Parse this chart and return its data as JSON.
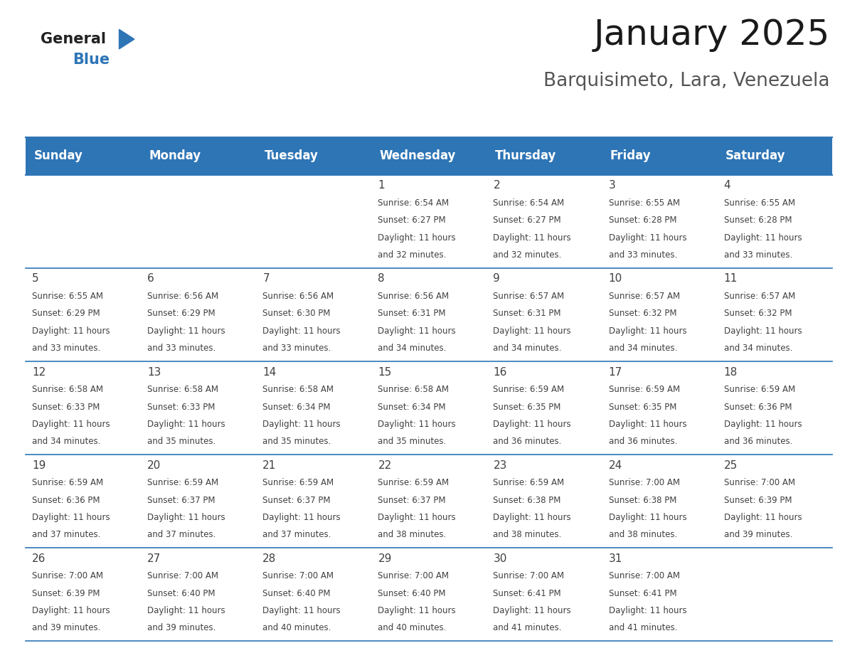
{
  "title": "January 2025",
  "subtitle": "Barquisimeto, Lara, Venezuela",
  "header_bg": "#2E75B6",
  "header_text_color": "#FFFFFF",
  "day_names": [
    "Sunday",
    "Monday",
    "Tuesday",
    "Wednesday",
    "Thursday",
    "Friday",
    "Saturday"
  ],
  "background_color": "#FFFFFF",
  "cell_bg": "#FFFFFF",
  "cell_text_color": "#404040",
  "border_color": "#2E75B6",
  "days": [
    {
      "day": 1,
      "col": 3,
      "row": 0,
      "sunrise": "6:54 AM",
      "sunset": "6:27 PM",
      "daylight_hours": 11,
      "daylight_minutes": 32
    },
    {
      "day": 2,
      "col": 4,
      "row": 0,
      "sunrise": "6:54 AM",
      "sunset": "6:27 PM",
      "daylight_hours": 11,
      "daylight_minutes": 32
    },
    {
      "day": 3,
      "col": 5,
      "row": 0,
      "sunrise": "6:55 AM",
      "sunset": "6:28 PM",
      "daylight_hours": 11,
      "daylight_minutes": 33
    },
    {
      "day": 4,
      "col": 6,
      "row": 0,
      "sunrise": "6:55 AM",
      "sunset": "6:28 PM",
      "daylight_hours": 11,
      "daylight_minutes": 33
    },
    {
      "day": 5,
      "col": 0,
      "row": 1,
      "sunrise": "6:55 AM",
      "sunset": "6:29 PM",
      "daylight_hours": 11,
      "daylight_minutes": 33
    },
    {
      "day": 6,
      "col": 1,
      "row": 1,
      "sunrise": "6:56 AM",
      "sunset": "6:29 PM",
      "daylight_hours": 11,
      "daylight_minutes": 33
    },
    {
      "day": 7,
      "col": 2,
      "row": 1,
      "sunrise": "6:56 AM",
      "sunset": "6:30 PM",
      "daylight_hours": 11,
      "daylight_minutes": 33
    },
    {
      "day": 8,
      "col": 3,
      "row": 1,
      "sunrise": "6:56 AM",
      "sunset": "6:31 PM",
      "daylight_hours": 11,
      "daylight_minutes": 34
    },
    {
      "day": 9,
      "col": 4,
      "row": 1,
      "sunrise": "6:57 AM",
      "sunset": "6:31 PM",
      "daylight_hours": 11,
      "daylight_minutes": 34
    },
    {
      "day": 10,
      "col": 5,
      "row": 1,
      "sunrise": "6:57 AM",
      "sunset": "6:32 PM",
      "daylight_hours": 11,
      "daylight_minutes": 34
    },
    {
      "day": 11,
      "col": 6,
      "row": 1,
      "sunrise": "6:57 AM",
      "sunset": "6:32 PM",
      "daylight_hours": 11,
      "daylight_minutes": 34
    },
    {
      "day": 12,
      "col": 0,
      "row": 2,
      "sunrise": "6:58 AM",
      "sunset": "6:33 PM",
      "daylight_hours": 11,
      "daylight_minutes": 34
    },
    {
      "day": 13,
      "col": 1,
      "row": 2,
      "sunrise": "6:58 AM",
      "sunset": "6:33 PM",
      "daylight_hours": 11,
      "daylight_minutes": 35
    },
    {
      "day": 14,
      "col": 2,
      "row": 2,
      "sunrise": "6:58 AM",
      "sunset": "6:34 PM",
      "daylight_hours": 11,
      "daylight_minutes": 35
    },
    {
      "day": 15,
      "col": 3,
      "row": 2,
      "sunrise": "6:58 AM",
      "sunset": "6:34 PM",
      "daylight_hours": 11,
      "daylight_minutes": 35
    },
    {
      "day": 16,
      "col": 4,
      "row": 2,
      "sunrise": "6:59 AM",
      "sunset": "6:35 PM",
      "daylight_hours": 11,
      "daylight_minutes": 36
    },
    {
      "day": 17,
      "col": 5,
      "row": 2,
      "sunrise": "6:59 AM",
      "sunset": "6:35 PM",
      "daylight_hours": 11,
      "daylight_minutes": 36
    },
    {
      "day": 18,
      "col": 6,
      "row": 2,
      "sunrise": "6:59 AM",
      "sunset": "6:36 PM",
      "daylight_hours": 11,
      "daylight_minutes": 36
    },
    {
      "day": 19,
      "col": 0,
      "row": 3,
      "sunrise": "6:59 AM",
      "sunset": "6:36 PM",
      "daylight_hours": 11,
      "daylight_minutes": 37
    },
    {
      "day": 20,
      "col": 1,
      "row": 3,
      "sunrise": "6:59 AM",
      "sunset": "6:37 PM",
      "daylight_hours": 11,
      "daylight_minutes": 37
    },
    {
      "day": 21,
      "col": 2,
      "row": 3,
      "sunrise": "6:59 AM",
      "sunset": "6:37 PM",
      "daylight_hours": 11,
      "daylight_minutes": 37
    },
    {
      "day": 22,
      "col": 3,
      "row": 3,
      "sunrise": "6:59 AM",
      "sunset": "6:37 PM",
      "daylight_hours": 11,
      "daylight_minutes": 38
    },
    {
      "day": 23,
      "col": 4,
      "row": 3,
      "sunrise": "6:59 AM",
      "sunset": "6:38 PM",
      "daylight_hours": 11,
      "daylight_minutes": 38
    },
    {
      "day": 24,
      "col": 5,
      "row": 3,
      "sunrise": "7:00 AM",
      "sunset": "6:38 PM",
      "daylight_hours": 11,
      "daylight_minutes": 38
    },
    {
      "day": 25,
      "col": 6,
      "row": 3,
      "sunrise": "7:00 AM",
      "sunset": "6:39 PM",
      "daylight_hours": 11,
      "daylight_minutes": 39
    },
    {
      "day": 26,
      "col": 0,
      "row": 4,
      "sunrise": "7:00 AM",
      "sunset": "6:39 PM",
      "daylight_hours": 11,
      "daylight_minutes": 39
    },
    {
      "day": 27,
      "col": 1,
      "row": 4,
      "sunrise": "7:00 AM",
      "sunset": "6:40 PM",
      "daylight_hours": 11,
      "daylight_minutes": 39
    },
    {
      "day": 28,
      "col": 2,
      "row": 4,
      "sunrise": "7:00 AM",
      "sunset": "6:40 PM",
      "daylight_hours": 11,
      "daylight_minutes": 40
    },
    {
      "day": 29,
      "col": 3,
      "row": 4,
      "sunrise": "7:00 AM",
      "sunset": "6:40 PM",
      "daylight_hours": 11,
      "daylight_minutes": 40
    },
    {
      "day": 30,
      "col": 4,
      "row": 4,
      "sunrise": "7:00 AM",
      "sunset": "6:41 PM",
      "daylight_hours": 11,
      "daylight_minutes": 41
    },
    {
      "day": 31,
      "col": 5,
      "row": 4,
      "sunrise": "7:00 AM",
      "sunset": "6:41 PM",
      "daylight_hours": 11,
      "daylight_minutes": 41
    }
  ],
  "num_rows": 5,
  "num_cols": 7,
  "logo_general_color": "#222222",
  "logo_blue_color": "#2E75B6",
  "title_fontsize": 36,
  "subtitle_fontsize": 19,
  "header_fontsize": 12,
  "day_num_fontsize": 11,
  "cell_text_fontsize": 8.5
}
